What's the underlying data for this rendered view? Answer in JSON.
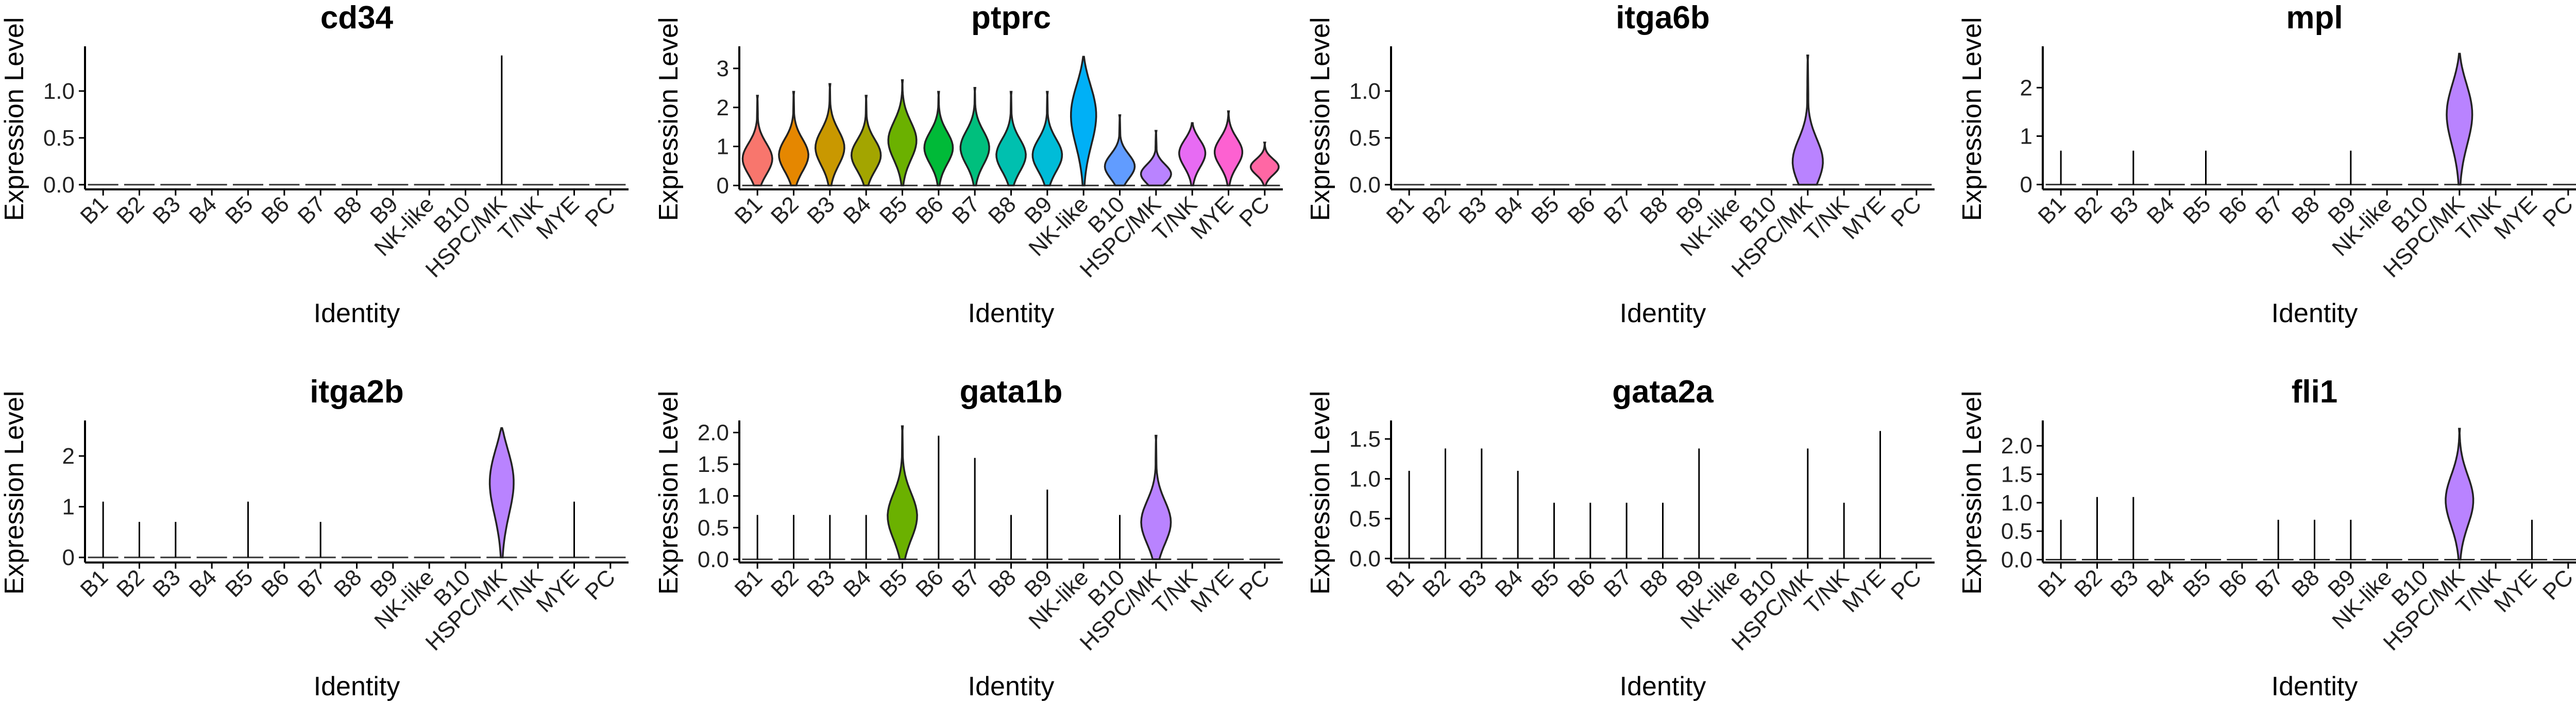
{
  "chart_data": [
    {
      "type": "violin",
      "title": "cd34",
      "xlabel": "Identity",
      "ylabel": "Expression Level",
      "ylim": [
        -0.05,
        1.45
      ],
      "yticks": [
        0.0,
        0.5,
        1.0
      ],
      "ytick_labels": [
        "0.0",
        "0.5",
        "1.0"
      ],
      "categories": [
        "B1",
        "B2",
        "B3",
        "B4",
        "B5",
        "B6",
        "B7",
        "B8",
        "B9",
        "NK-like",
        "B10",
        "HSPC/MK",
        "T/NK",
        "MYE",
        "PC"
      ],
      "max_values": [
        0,
        0,
        0,
        0,
        0,
        0,
        0,
        0,
        0,
        0,
        0,
        1.38,
        0,
        0,
        0
      ],
      "bulk_values": [
        0,
        0,
        0,
        0,
        0,
        0,
        0,
        0,
        0,
        0,
        0,
        0,
        0,
        0,
        0
      ]
    },
    {
      "type": "violin",
      "title": "ptprc",
      "xlabel": "Identity",
      "ylabel": "Expression Level",
      "ylim": [
        -0.1,
        3.5
      ],
      "yticks": [
        0,
        1,
        2,
        3
      ],
      "ytick_labels": [
        "0",
        "1",
        "2",
        "3"
      ],
      "categories": [
        "B1",
        "B2",
        "B3",
        "B4",
        "B5",
        "B6",
        "B7",
        "B8",
        "B9",
        "NK-like",
        "B10",
        "HSPC/MK",
        "T/NK",
        "MYE",
        "PC"
      ],
      "max_values": [
        2.3,
        2.4,
        2.6,
        2.3,
        2.7,
        2.4,
        2.5,
        2.4,
        2.4,
        3.3,
        1.8,
        1.4,
        1.6,
        1.9,
        1.1
      ],
      "bulk_values": [
        0.7,
        0.8,
        1.0,
        0.8,
        1.2,
        1.0,
        1.0,
        0.8,
        0.8,
        2.0,
        0.5,
        0.3,
        0.9,
        0.9,
        0.5
      ]
    },
    {
      "type": "violin",
      "title": "itga6b",
      "xlabel": "Identity",
      "ylabel": "Expression Level",
      "ylim": [
        -0.05,
        1.45
      ],
      "yticks": [
        0.0,
        0.5,
        1.0
      ],
      "ytick_labels": [
        "0.0",
        "0.5",
        "1.0"
      ],
      "categories": [
        "B1",
        "B2",
        "B3",
        "B4",
        "B5",
        "B6",
        "B7",
        "B8",
        "B9",
        "NK-like",
        "B10",
        "HSPC/MK",
        "T/NK",
        "MYE",
        "PC"
      ],
      "max_values": [
        0,
        0,
        0,
        0,
        0,
        0,
        0,
        0,
        0,
        0,
        0,
        1.38,
        0,
        0,
        0
      ],
      "bulk_values": [
        0,
        0,
        0,
        0,
        0,
        0,
        0,
        0,
        0,
        0,
        0,
        0.25,
        0,
        0,
        0
      ]
    },
    {
      "type": "violin",
      "title": "mpl",
      "xlabel": "Identity",
      "ylabel": "Expression Level",
      "ylim": [
        -0.1,
        2.8
      ],
      "yticks": [
        0,
        1,
        2
      ],
      "ytick_labels": [
        "0",
        "1",
        "2"
      ],
      "categories": [
        "B1",
        "B2",
        "B3",
        "B4",
        "B5",
        "B6",
        "B7",
        "B8",
        "B9",
        "NK-like",
        "B10",
        "HSPC/MK",
        "T/NK",
        "MYE",
        "PC"
      ],
      "max_values": [
        0.7,
        0,
        0.7,
        0,
        0.7,
        0,
        0,
        0,
        0.7,
        0,
        0,
        2.7,
        0,
        0,
        0
      ],
      "bulk_values": [
        0,
        0,
        0,
        0,
        0,
        0,
        0,
        0,
        0,
        0,
        0,
        1.6,
        0,
        0,
        0
      ]
    },
    {
      "type": "violin",
      "title": "itga2b",
      "xlabel": "Identity",
      "ylabel": "Expression Level",
      "ylim": [
        -0.1,
        2.65
      ],
      "yticks": [
        0,
        1,
        2
      ],
      "ytick_labels": [
        "0",
        "1",
        "2"
      ],
      "categories": [
        "B1",
        "B2",
        "B3",
        "B4",
        "B5",
        "B6",
        "B7",
        "B8",
        "B9",
        "NK-like",
        "B10",
        "HSPC/MK",
        "T/NK",
        "MYE",
        "PC"
      ],
      "max_values": [
        1.1,
        0.7,
        0.7,
        0,
        1.1,
        0,
        0.7,
        0,
        0,
        0,
        0,
        2.55,
        0,
        1.1,
        0
      ],
      "bulk_values": [
        0,
        0,
        0,
        0,
        0,
        0,
        0,
        0,
        0,
        0,
        0,
        1.7,
        0,
        0,
        0
      ]
    },
    {
      "type": "violin",
      "title": "gata1b",
      "xlabel": "Identity",
      "ylabel": "Expression Level",
      "ylim": [
        -0.05,
        2.15
      ],
      "yticks": [
        0.0,
        0.5,
        1.0,
        1.5,
        2.0
      ],
      "ytick_labels": [
        "0.0",
        "0.5",
        "1.0",
        "1.5",
        "2.0"
      ],
      "categories": [
        "B1",
        "B2",
        "B3",
        "B4",
        "B5",
        "B6",
        "B7",
        "B8",
        "B9",
        "NK-like",
        "B10",
        "HSPC/MK",
        "T/NK",
        "MYE",
        "PC"
      ],
      "max_values": [
        0.7,
        0.7,
        0.7,
        0.7,
        2.1,
        1.95,
        1.6,
        0.7,
        1.1,
        0,
        0.7,
        1.95,
        0,
        0,
        0
      ],
      "bulk_values": [
        0,
        0,
        0,
        0,
        0.7,
        0,
        0,
        0,
        0,
        0,
        0,
        0.6,
        0,
        0,
        0
      ]
    },
    {
      "type": "violin",
      "title": "gata2a",
      "xlabel": "Identity",
      "ylabel": "Expression Level",
      "ylim": [
        -0.05,
        1.7
      ],
      "yticks": [
        0.0,
        0.5,
        1.0,
        1.5
      ],
      "ytick_labels": [
        "0.0",
        "0.5",
        "1.0",
        "1.5"
      ],
      "categories": [
        "B1",
        "B2",
        "B3",
        "B4",
        "B5",
        "B6",
        "B7",
        "B8",
        "B9",
        "NK-like",
        "B10",
        "HSPC/MK",
        "T/NK",
        "MYE",
        "PC"
      ],
      "max_values": [
        1.1,
        1.38,
        1.38,
        1.1,
        0.7,
        0.7,
        0.7,
        0.7,
        1.38,
        0,
        0,
        1.38,
        0.7,
        1.6,
        0
      ],
      "bulk_values": [
        0,
        0,
        0,
        0,
        0,
        0,
        0,
        0,
        0,
        0,
        0,
        0,
        0,
        0,
        0
      ]
    },
    {
      "type": "violin",
      "title": "fli1",
      "xlabel": "Identity",
      "ylabel": "Expression Level",
      "ylim": [
        -0.05,
        2.4
      ],
      "yticks": [
        0.0,
        0.5,
        1.0,
        1.5,
        2.0
      ],
      "ytick_labels": [
        "0.0",
        "0.5",
        "1.0",
        "1.5",
        "2.0"
      ],
      "categories": [
        "B1",
        "B2",
        "B3",
        "B4",
        "B5",
        "B6",
        "B7",
        "B8",
        "B9",
        "NK-like",
        "B10",
        "HSPC/MK",
        "T/NK",
        "MYE",
        "PC"
      ],
      "max_values": [
        0.7,
        1.1,
        1.1,
        0,
        0,
        0,
        0.7,
        0.7,
        0.7,
        0,
        0,
        2.3,
        0,
        0.7,
        0
      ],
      "bulk_values": [
        0,
        0,
        0,
        0,
        0,
        0,
        0,
        0,
        0,
        0,
        0,
        1.1,
        0,
        0,
        0
      ]
    }
  ],
  "colors": [
    "#F8766D",
    "#E58700",
    "#C99800",
    "#A3A500",
    "#6BB100",
    "#00BA38",
    "#00BF7D",
    "#00C0AF",
    "#00BCD8",
    "#00B0F6",
    "#619CFF",
    "#B983FF",
    "#E76BF3",
    "#FD61D1",
    "#FF67A4"
  ]
}
